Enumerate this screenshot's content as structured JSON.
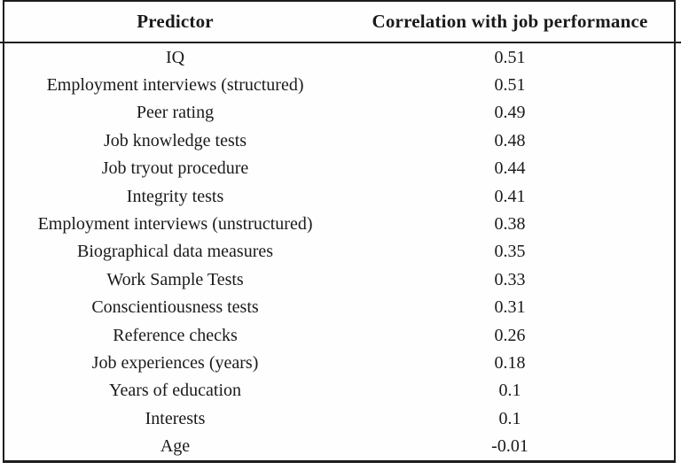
{
  "table": {
    "columns": [
      "Predictor",
      "Correlation with job performance"
    ],
    "rows": [
      {
        "predictor": "IQ",
        "correlation": "0.51"
      },
      {
        "predictor": "Employment interviews (structured)",
        "correlation": "0.51"
      },
      {
        "predictor": "Peer rating",
        "correlation": "0.49"
      },
      {
        "predictor": "Job knowledge tests",
        "correlation": "0.48"
      },
      {
        "predictor": "Job tryout procedure",
        "correlation": "0.44"
      },
      {
        "predictor": "Integrity tests",
        "correlation": "0.41"
      },
      {
        "predictor": "Employment interviews (unstructured)",
        "correlation": "0.38"
      },
      {
        "predictor": "Biographical data measures",
        "correlation": "0.35"
      },
      {
        "predictor": "Work Sample Tests",
        "correlation": "0.33"
      },
      {
        "predictor": "Conscientiousness tests",
        "correlation": "0.31"
      },
      {
        "predictor": "Reference checks",
        "correlation": "0.26"
      },
      {
        "predictor": "Job experiences (years)",
        "correlation": "0.18"
      },
      {
        "predictor": "Years of education",
        "correlation": "0.1"
      },
      {
        "predictor": "Interests",
        "correlation": "0.1"
      },
      {
        "predictor": "Age",
        "correlation": "-0.01"
      }
    ]
  },
  "chart_data": {
    "type": "table",
    "title": "",
    "columns": [
      "Predictor",
      "Correlation with job performance"
    ],
    "rows": [
      [
        "IQ",
        0.51
      ],
      [
        "Employment interviews (structured)",
        0.51
      ],
      [
        "Peer rating",
        0.49
      ],
      [
        "Job knowledge tests",
        0.48
      ],
      [
        "Job tryout procedure",
        0.44
      ],
      [
        "Integrity tests",
        0.41
      ],
      [
        "Employment interviews (unstructured)",
        0.38
      ],
      [
        "Biographical data measures",
        0.35
      ],
      [
        "Work Sample Tests",
        0.33
      ],
      [
        "Conscientiousness tests",
        0.31
      ],
      [
        "Reference checks",
        0.26
      ],
      [
        "Job experiences (years)",
        0.18
      ],
      [
        "Years of education",
        0.1
      ],
      [
        "Interests",
        0.1
      ],
      [
        "Age",
        -0.01
      ]
    ],
    "legend_position": "none",
    "grid": false
  },
  "colors": {
    "text": "#1a1a1a",
    "border": "#1d1d1d",
    "background": "#ffffff"
  }
}
